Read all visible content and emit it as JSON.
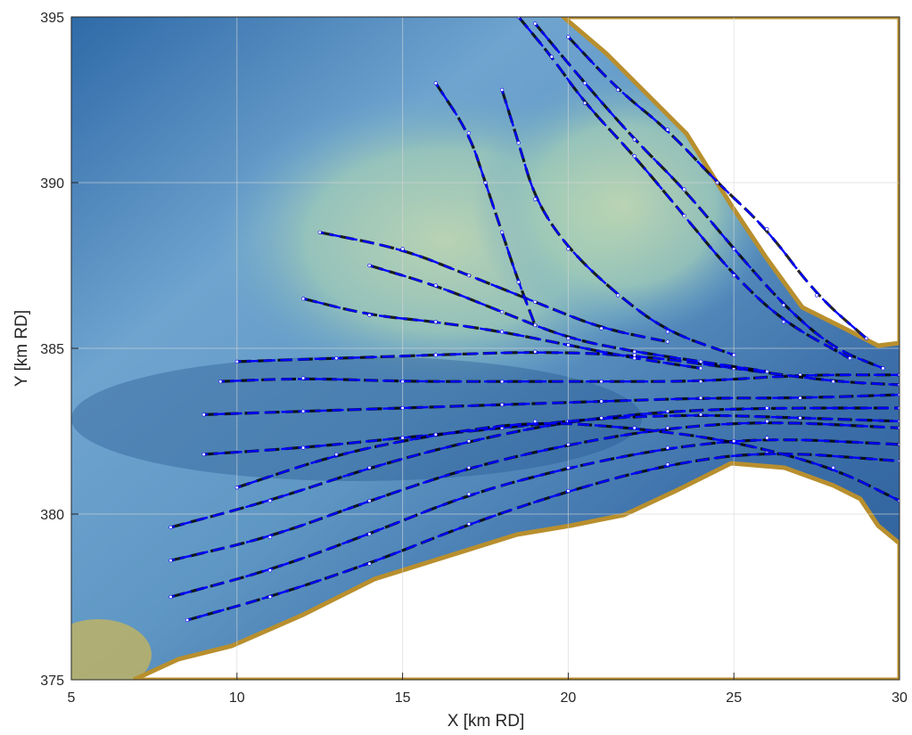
{
  "chart_data": {
    "type": "streamline",
    "title": "",
    "xlabel": "X [km RD]",
    "ylabel": "Y [km RD]",
    "xlim": [
      5,
      30
    ],
    "ylim": [
      375,
      395
    ],
    "xticks": [
      "5",
      "10",
      "15",
      "20",
      "25",
      "30"
    ],
    "yticks": [
      "375",
      "380",
      "385",
      "390",
      "395"
    ],
    "grid": true,
    "colors": {
      "field_blue": "#3b6fa8",
      "field_light": "#9cc8b8",
      "field_yellow": "#c9b65a",
      "land": "#ffffff",
      "shoal_edge": "#b88f2e",
      "streamline_a": "#0000ff",
      "streamline_b": "#000000",
      "markers": "#ffffff"
    },
    "series": [
      {
        "streamlines": [
          [
            [
              8,
              379.6
            ],
            [
              11,
              380.4
            ],
            [
              14,
              381.4
            ],
            [
              17,
              382.2
            ],
            [
              20,
              382.8
            ],
            [
              23,
              383.1
            ],
            [
              26,
              383.2
            ],
            [
              30,
              383.2
            ]
          ],
          [
            [
              8,
              378.6
            ],
            [
              11,
              379.3
            ],
            [
              14,
              380.4
            ],
            [
              17,
              381.4
            ],
            [
              20,
              382.1
            ],
            [
              23,
              382.6
            ],
            [
              26,
              382.8
            ],
            [
              30,
              382.6
            ]
          ],
          [
            [
              8,
              377.5
            ],
            [
              11,
              378.3
            ],
            [
              14,
              379.4
            ],
            [
              17,
              380.6
            ],
            [
              20,
              381.4
            ],
            [
              23,
              382.0
            ],
            [
              26,
              382.3
            ],
            [
              30,
              382.1
            ]
          ],
          [
            [
              8.5,
              376.8
            ],
            [
              11,
              377.5
            ],
            [
              14,
              378.5
            ],
            [
              17,
              379.7
            ],
            [
              20,
              380.7
            ],
            [
              23,
              381.5
            ],
            [
              26,
              381.9
            ],
            [
              30,
              381.6
            ]
          ],
          [
            [
              9,
              383.0
            ],
            [
              12,
              383.1
            ],
            [
              15,
              383.2
            ],
            [
              18,
              383.3
            ],
            [
              21,
              383.4
            ],
            [
              24,
              383.5
            ],
            [
              27,
              383.5
            ],
            [
              30,
              383.6
            ]
          ],
          [
            [
              9,
              381.8
            ],
            [
              12,
              382.0
            ],
            [
              15,
              382.3
            ],
            [
              18,
              382.6
            ],
            [
              21,
              382.9
            ],
            [
              24,
              383.0
            ],
            [
              27,
              382.9
            ],
            [
              30,
              382.8
            ]
          ],
          [
            [
              9.5,
              384.0
            ],
            [
              12,
              384.1
            ],
            [
              15,
              384.0
            ],
            [
              18,
              384.0
            ],
            [
              21,
              384.0
            ],
            [
              24,
              384.0
            ],
            [
              27,
              384.2
            ],
            [
              30,
              384.2
            ]
          ],
          [
            [
              10,
              384.6
            ],
            [
              13,
              384.7
            ],
            [
              16,
              384.8
            ],
            [
              19,
              384.9
            ],
            [
              22,
              384.8
            ],
            [
              25,
              384.4
            ],
            [
              28,
              384.0
            ],
            [
              30,
              383.9
            ]
          ],
          [
            [
              14,
              387.5
            ],
            [
              16,
              386.9
            ],
            [
              18,
              386.1
            ],
            [
              20,
              385.3
            ],
            [
              22,
              384.9
            ],
            [
              24,
              384.6
            ],
            [
              26,
              384.3
            ]
          ],
          [
            [
              12.5,
              388.5
            ],
            [
              15,
              388.0
            ],
            [
              17,
              387.2
            ],
            [
              19,
              386.4
            ],
            [
              21,
              385.6
            ],
            [
              23,
              385.2
            ]
          ],
          [
            [
              16,
              393.0
            ],
            [
              17,
              391.5
            ],
            [
              17.5,
              390.0
            ],
            [
              18,
              388.5
            ],
            [
              18.5,
              387.0
            ],
            [
              19,
              385.7
            ]
          ],
          [
            [
              18,
              392.8
            ],
            [
              18.5,
              391.2
            ],
            [
              19,
              389.5
            ],
            [
              20,
              388.0
            ],
            [
              21.5,
              386.6
            ],
            [
              23,
              385.5
            ],
            [
              25,
              384.8
            ]
          ],
          [
            [
              19,
              394.8
            ],
            [
              20.5,
              393.0
            ],
            [
              22,
              391.3
            ],
            [
              23.5,
              389.8
            ],
            [
              25,
              388.0
            ],
            [
              26.5,
              386.3
            ],
            [
              28,
              385.0
            ],
            [
              29.5,
              384.4
            ]
          ],
          [
            [
              18.5,
              395.0
            ],
            [
              19.5,
              393.8
            ],
            [
              20.5,
              392.4
            ],
            [
              22,
              390.8
            ],
            [
              23.5,
              389.0
            ],
            [
              25,
              387.2
            ],
            [
              26.5,
              385.8
            ],
            [
              28.5,
              384.7
            ]
          ],
          [
            [
              20,
              394.4
            ],
            [
              21.5,
              392.8
            ],
            [
              23,
              391.6
            ],
            [
              24.5,
              390.0
            ],
            [
              26,
              388.6
            ],
            [
              27.5,
              386.6
            ],
            [
              29,
              385.3
            ]
          ],
          [
            [
              10,
              380.8
            ],
            [
              13,
              381.8
            ],
            [
              16,
              382.4
            ],
            [
              19,
              382.8
            ],
            [
              22,
              382.6
            ],
            [
              25,
              382.2
            ],
            [
              28,
              381.4
            ],
            [
              30,
              380.4
            ]
          ],
          [
            [
              12,
              386.5
            ],
            [
              14,
              386.0
            ],
            [
              16,
              385.8
            ],
            [
              18,
              385.5
            ],
            [
              20,
              385.1
            ],
            [
              22,
              384.7
            ],
            [
              24,
              384.4
            ]
          ]
        ]
      }
    ]
  }
}
